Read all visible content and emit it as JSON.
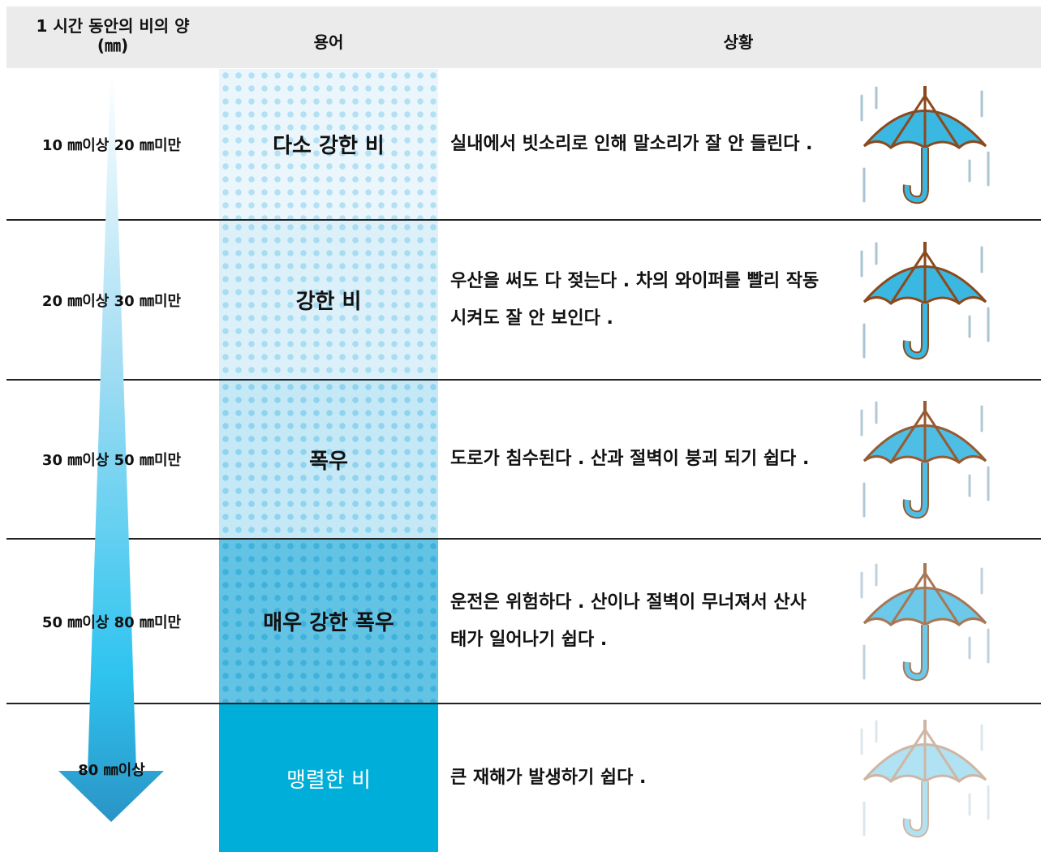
{
  "header": {
    "amount": [
      "1 시간 동안의 비의 양",
      "(㎜)"
    ],
    "term": "용어",
    "situation": "상황"
  },
  "rows": [
    {
      "amount": "10 ㎜이상 20 ㎜미만",
      "term": "다소 강한 비",
      "situation": "실내에서 빗소리로 인해 말소리가 잘 안 들린다 ."
    },
    {
      "amount": "20 ㎜이상 30 ㎜미만",
      "term": "강한 비",
      "situation": "우산을 써도 다 젖는다 . 차의 와이퍼를 빨리 작동시켜도 잘 안 보인다 ."
    },
    {
      "amount": "30 ㎜이상 50 ㎜미만",
      "term": "폭우",
      "situation": "도로가 침수된다 . 산과 절벽이 붕괴 되기 쉽다 ."
    },
    {
      "amount": "50 ㎜이상 80 ㎜미만",
      "term": "매우 강한 폭우",
      "situation": "운전은 위험하다 . 산이나 절벽이 무너져서 산사태가 일어나기 쉽다 ."
    },
    {
      "amount": "80 ㎜이상",
      "term": "맹렬한 비",
      "situation": "큰 재해가 발생하기 쉽다 ."
    }
  ]
}
